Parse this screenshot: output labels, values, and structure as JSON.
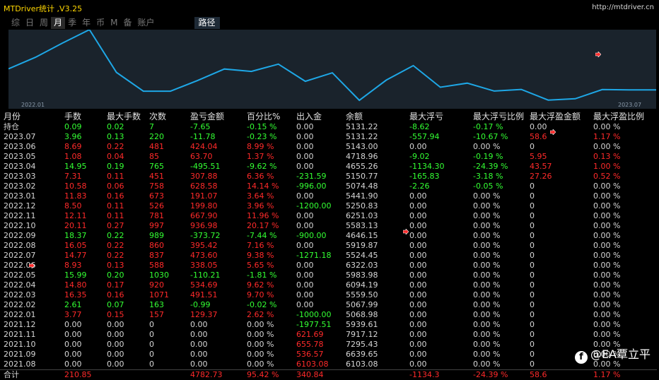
{
  "header": {
    "title": "MTDriver统计 ,V3.25",
    "url": "http://mtdriver.cn"
  },
  "tabs": [
    {
      "label": "综",
      "active": false
    },
    {
      "label": "日",
      "active": false
    },
    {
      "label": "周",
      "active": false
    },
    {
      "label": "月",
      "active": true
    },
    {
      "label": "季",
      "active": false
    },
    {
      "label": "年",
      "active": false
    },
    {
      "label": "币",
      "active": false
    },
    {
      "label": "M",
      "active": false
    },
    {
      "label": "备",
      "active": false
    },
    {
      "label": "账户",
      "active": false
    }
  ],
  "path_tab": "路径",
  "chart_data": {
    "type": "line",
    "x_start_label": "2022.01",
    "x_end_label": "2023.07",
    "series": [
      {
        "x": [
          "2021.08",
          "2021.09",
          "2021.10",
          "2021.11",
          "2021.12",
          "2022.01",
          "2022.02",
          "2022.03",
          "2022.04",
          "2022.05",
          "2022.06",
          "2022.07",
          "2022.08",
          "2022.09",
          "2022.10",
          "2022.11",
          "2022.12",
          "2023.01",
          "2023.02",
          "2023.03",
          "2023.04",
          "2023.05",
          "2023.06",
          "2023.07",
          "持仓"
        ],
        "values": [
          6103.08,
          6639.65,
          7295.43,
          7917.12,
          5939.61,
          5068.98,
          5067.99,
          5559.5,
          6094.19,
          5983.98,
          6322.03,
          5524.45,
          5919.87,
          4646.15,
          5583.13,
          6251.03,
          5250.83,
          5441.9,
          5074.48,
          5150.77,
          4655.26,
          4718.96,
          5143.0,
          5131.22,
          5131.22
        ],
        "color": "#1ea7e6"
      }
    ]
  },
  "table": {
    "headers": [
      "月份",
      "手数",
      "最大手数",
      "次数",
      "盈亏金额",
      "百分比%",
      "出入金",
      "余额",
      "最大浮亏",
      "最大浮亏比例",
      "最大浮盈金额",
      "最大浮盈比例"
    ],
    "rows": [
      [
        "持仓",
        "0.09",
        "0.02",
        "7",
        "-7.65",
        "-0.15 %",
        "0.00",
        "5131.22",
        "-8.62",
        "-0.17 %",
        "0.00",
        "0.00 %"
      ],
      [
        "2023.07",
        "3.96",
        "0.13",
        "220",
        "-11.78",
        "-0.23 %",
        "0.00",
        "5131.22",
        "-557.94",
        "-10.67 %",
        "58.6",
        "1.17 %"
      ],
      [
        "2023.06",
        "8.69",
        "0.22",
        "481",
        "424.04",
        "8.99 %",
        "0.00",
        "5143.00",
        "0.00",
        "0.00 %",
        "0",
        "0.00 %"
      ],
      [
        "2023.05",
        "1.08",
        "0.04",
        "85",
        "63.70",
        "1.37 %",
        "0.00",
        "4718.96",
        "-9.02",
        "-0.19 %",
        "5.95",
        "0.13 %"
      ],
      [
        "2023.04",
        "14.95",
        "0.19",
        "765",
        "-495.51",
        "-9.62 %",
        "0.00",
        "4655.26",
        "-1134.30",
        "-24.39 %",
        "43.57",
        "1.00 %"
      ],
      [
        "2023.03",
        "7.31",
        "0.11",
        "451",
        "307.88",
        "6.36 %",
        "-231.59",
        "5150.77",
        "-165.83",
        "-3.18 %",
        "27.26",
        "0.52 %"
      ],
      [
        "2023.02",
        "10.58",
        "0.06",
        "758",
        "628.58",
        "14.14 %",
        "-996.00",
        "5074.48",
        "-2.26",
        "-0.05 %",
        "0",
        "0.00 %"
      ],
      [
        "2023.01",
        "11.83",
        "0.16",
        "673",
        "191.07",
        "3.64 %",
        "0.00",
        "5441.90",
        "0.00",
        "0.00 %",
        "0",
        "0.00 %"
      ],
      [
        "2022.12",
        "8.50",
        "0.11",
        "526",
        "199.80",
        "3.96 %",
        "-1200.00",
        "5250.83",
        "0.00",
        "0.00 %",
        "0",
        "0.00 %"
      ],
      [
        "2022.11",
        "12.11",
        "0.11",
        "781",
        "667.90",
        "11.96 %",
        "0.00",
        "6251.03",
        "0.00",
        "0.00 %",
        "0",
        "0.00 %"
      ],
      [
        "2022.10",
        "20.11",
        "0.27",
        "997",
        "936.98",
        "20.17 %",
        "0.00",
        "5583.13",
        "0.00",
        "0.00 %",
        "0",
        "0.00 %"
      ],
      [
        "2022.09",
        "18.37",
        "0.22",
        "989",
        "-373.72",
        "-7.44 %",
        "-900.00",
        "4646.15",
        "0.00",
        "0.00 %",
        "0",
        "0.00 %"
      ],
      [
        "2022.08",
        "16.05",
        "0.22",
        "860",
        "395.42",
        "7.16 %",
        "0.00",
        "5919.87",
        "0.00",
        "0.00 %",
        "0",
        "0.00 %"
      ],
      [
        "2022.07",
        "14.77",
        "0.22",
        "837",
        "473.60",
        "9.38 %",
        "-1271.18",
        "5524.45",
        "0.00",
        "0.00 %",
        "0",
        "0.00 %"
      ],
      [
        "2022.06",
        "8.93",
        "0.13",
        "588",
        "338.05",
        "5.65 %",
        "0.00",
        "6322.03",
        "0.00",
        "0.00 %",
        "0",
        "0.00 %"
      ],
      [
        "2022.05",
        "15.99",
        "0.20",
        "1030",
        "-110.21",
        "-1.81 %",
        "0.00",
        "5983.98",
        "0.00",
        "0.00 %",
        "0",
        "0.00 %"
      ],
      [
        "2022.04",
        "14.80",
        "0.17",
        "920",
        "534.69",
        "9.62 %",
        "0.00",
        "6094.19",
        "0.00",
        "0.00 %",
        "0",
        "0.00 %"
      ],
      [
        "2022.03",
        "16.35",
        "0.16",
        "1071",
        "491.51",
        "9.70 %",
        "0.00",
        "5559.50",
        "0.00",
        "0.00 %",
        "0",
        "0.00 %"
      ],
      [
        "2022.02",
        "2.61",
        "0.07",
        "163",
        "-0.99",
        "-0.02 %",
        "0.00",
        "5067.99",
        "0.00",
        "0.00 %",
        "0",
        "0.00 %"
      ],
      [
        "2022.01",
        "3.77",
        "0.15",
        "157",
        "129.37",
        "2.62 %",
        "-1000.00",
        "5068.98",
        "0.00",
        "0.00 %",
        "0",
        "0.00 %"
      ],
      [
        "2021.12",
        "0.00",
        "0.00",
        "0",
        "0.00",
        "0.00 %",
        "-1977.51",
        "5939.61",
        "0.00",
        "0.00 %",
        "0",
        "0.00 %"
      ],
      [
        "2021.11",
        "0.00",
        "0.00",
        "0",
        "0.00",
        "0.00 %",
        "621.69",
        "7917.12",
        "0.00",
        "0.00 %",
        "0",
        "0.00 %"
      ],
      [
        "2021.10",
        "0.00",
        "0.00",
        "0",
        "0.00",
        "0.00 %",
        "655.78",
        "7295.43",
        "0.00",
        "0.00 %",
        "0",
        "0.00 %"
      ],
      [
        "2021.09",
        "0.00",
        "0.00",
        "0",
        "0.00",
        "0.00 %",
        "536.57",
        "6639.65",
        "0.00",
        "0.00 %",
        "0",
        "0.00 %"
      ],
      [
        "2021.08",
        "0.00",
        "0.00",
        "0",
        "0.00",
        "0.00 %",
        "6103.08",
        "6103.08",
        "0.00",
        "0.00 %",
        "0",
        "0.00 %"
      ]
    ],
    "total": [
      "合计",
      "210.85",
      "",
      "",
      "4782.73",
      "95.42 %",
      "340.84",
      "",
      "-1134.3",
      "-24.39 %",
      "58.6",
      "1.17 %"
    ]
  },
  "colors": {
    "positive": "#ff2a2a",
    "negative": "#33ff33",
    "neutral": "#d6d6d6",
    "line": "#1ea7e6",
    "title": "#ffd700"
  },
  "watermark": {
    "text": "@EA覃立平",
    "logo_icon": "facebook-icon"
  }
}
